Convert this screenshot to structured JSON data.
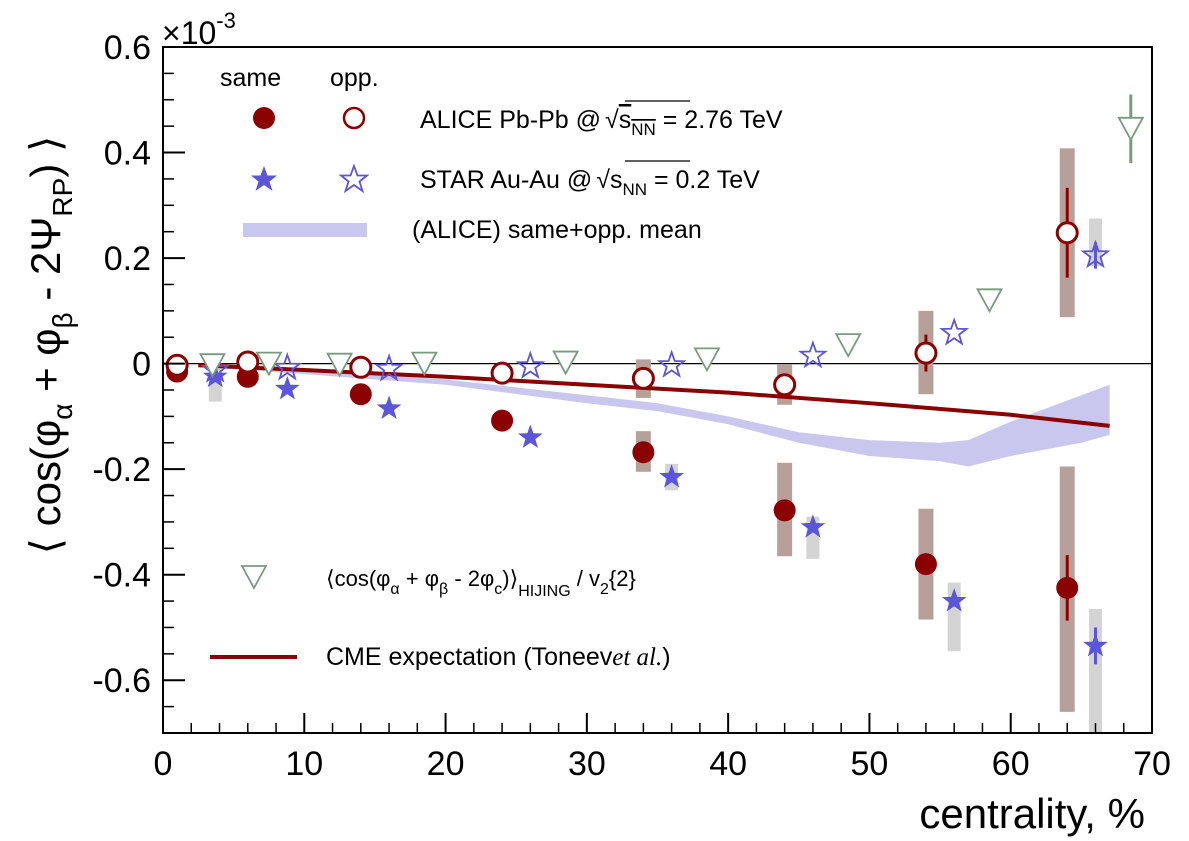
{
  "chart_data": {
    "type": "scatter",
    "xlabel": "centrality, %",
    "ylabel_parts": {
      "open": "⟨ cos(φ",
      "alpha": "α",
      "plus": " + φ",
      "beta": "β",
      "minus": " - 2Ψ",
      "rp": "RP",
      "close": ") ⟩"
    },
    "y_multiplier": {
      "base": "×10",
      "exp": "-3"
    },
    "xlim": [
      0,
      70
    ],
    "ylim": [
      -0.7,
      0.6
    ],
    "x_ticks": [
      0,
      10,
      20,
      30,
      40,
      50,
      60,
      70
    ],
    "y_ticks": [
      -0.6,
      -0.4,
      -0.2,
      0,
      0.2,
      0.4,
      0.6
    ],
    "x_tick_labels": [
      "0",
      "10",
      "20",
      "30",
      "40",
      "50",
      "60",
      "70"
    ],
    "y_tick_labels": [
      "-0.6",
      "-0.4",
      "-0.2",
      "0",
      "0.2",
      "0.4",
      "0.6"
    ],
    "legend": {
      "col_same": "same",
      "col_opp": "opp.",
      "alice": {
        "text": "ALICE Pb-Pb @",
        "sqrt_s": "s",
        "sub": "NN",
        "tail": " = 2.76 TeV"
      },
      "star": {
        "text": "STAR Au-Au @",
        "sqrt_s": "s",
        "sub": "NN",
        "tail": " = 0.2 TeV"
      },
      "band": "(ALICE) same+opp. mean",
      "hijing": {
        "open": "⟨cos(φ",
        "alpha": "α",
        "plus": " + φ",
        "beta": "β",
        "minus": " - 2φ",
        "c": "c",
        "close": ")⟩",
        "hijing": "HIJING",
        "tail": " / v",
        "two": "2",
        "tail2": "{2}"
      },
      "cme": {
        "text": "CME expectation (Toneev",
        "italic": "et al.",
        "close": ")"
      }
    },
    "colors": {
      "alice": "#8b0000",
      "alice_sys": "#b8a09a",
      "star": "#5b55d9",
      "star_sys": "#d4d4d4",
      "band": "#c9c7ee",
      "hijing": "#7a9a80",
      "cme": "#8b0000"
    },
    "series": [
      {
        "name": "ALICE same",
        "marker": "filled-circle",
        "points": [
          {
            "x": 1,
            "y": -0.015
          },
          {
            "x": 6,
            "y": -0.025
          },
          {
            "x": 14,
            "y": -0.058
          },
          {
            "x": 24,
            "y": -0.108
          },
          {
            "x": 34,
            "y": -0.168,
            "err": 0.01,
            "sys": [
              -0.205,
              -0.128
            ]
          },
          {
            "x": 44,
            "y": -0.278,
            "err": 0.015,
            "sys": [
              -0.365,
              -0.188
            ]
          },
          {
            "x": 54,
            "y": -0.38,
            "err": 0.015,
            "sys": [
              -0.485,
              -0.275
            ]
          },
          {
            "x": 64,
            "y": -0.425,
            "err": 0.062,
            "sys": [
              -0.66,
              -0.195
            ]
          }
        ]
      },
      {
        "name": "ALICE opp.",
        "marker": "open-circle",
        "points": [
          {
            "x": 1,
            "y": -0.003
          },
          {
            "x": 6,
            "y": 0.003
          },
          {
            "x": 14,
            "y": -0.007
          },
          {
            "x": 24,
            "y": -0.018
          },
          {
            "x": 34,
            "y": -0.028,
            "sys": [
              -0.065,
              0.008
            ]
          },
          {
            "x": 44,
            "y": -0.04,
            "sys": [
              -0.078,
              -0.002
            ]
          },
          {
            "x": 54,
            "y": 0.02,
            "err": 0.035,
            "sys": [
              -0.058,
              0.1
            ]
          },
          {
            "x": 64,
            "y": 0.248,
            "err": 0.085,
            "sys": [
              0.088,
              0.408
            ]
          }
        ]
      },
      {
        "name": "STAR same",
        "marker": "filled-star",
        "points": [
          {
            "x": 3.7,
            "y": -0.025,
            "sys": [
              -0.072,
              0.0
            ]
          },
          {
            "x": 8.8,
            "y": -0.048
          },
          {
            "x": 16,
            "y": -0.085
          },
          {
            "x": 26,
            "y": -0.14
          },
          {
            "x": 36,
            "y": -0.215,
            "sys": [
              -0.24,
              -0.19
            ]
          },
          {
            "x": 46,
            "y": -0.31,
            "sys": [
              -0.37,
              -0.29
            ]
          },
          {
            "x": 56,
            "y": -0.45,
            "sys": [
              -0.545,
              -0.415
            ]
          },
          {
            "x": 66,
            "y": -0.535,
            "err": 0.035,
            "sys": [
              -0.7,
              -0.465
            ]
          }
        ]
      },
      {
        "name": "STAR opp.",
        "marker": "open-star",
        "points": [
          {
            "x": 3.7,
            "y": -0.012
          },
          {
            "x": 8.8,
            "y": -0.008
          },
          {
            "x": 16,
            "y": -0.01
          },
          {
            "x": 26,
            "y": -0.005
          },
          {
            "x": 36,
            "y": -0.003
          },
          {
            "x": 46,
            "y": 0.015
          },
          {
            "x": 56,
            "y": 0.058
          },
          {
            "x": 66,
            "y": 0.205,
            "err": 0.025,
            "sys": [
              0.185,
              0.275
            ]
          }
        ]
      },
      {
        "name": "HIJING",
        "marker": "open-triangle-down",
        "points": [
          {
            "x": 3.5,
            "y": -0.003
          },
          {
            "x": 7.5,
            "y": 0.0
          },
          {
            "x": 12.5,
            "y": -0.002
          },
          {
            "x": 18.5,
            "y": 0.0
          },
          {
            "x": 28.5,
            "y": 0.002
          },
          {
            "x": 38.5,
            "y": 0.008
          },
          {
            "x": 48.5,
            "y": 0.035
          },
          {
            "x": 58.5,
            "y": 0.12
          },
          {
            "x": 68.5,
            "y": 0.445,
            "err": 0.065
          }
        ]
      }
    ],
    "band": {
      "x": [
        2.5,
        10,
        20,
        30,
        35,
        40,
        45,
        50,
        55,
        57,
        60,
        65,
        67
      ],
      "upper": [
        0.0,
        -0.01,
        -0.03,
        -0.06,
        -0.075,
        -0.1,
        -0.13,
        -0.145,
        -0.15,
        -0.145,
        -0.11,
        -0.06,
        -0.04
      ],
      "lower": [
        -0.006,
        -0.02,
        -0.04,
        -0.075,
        -0.09,
        -0.115,
        -0.15,
        -0.175,
        -0.185,
        -0.195,
        -0.175,
        -0.15,
        -0.135
      ]
    },
    "cme_line": {
      "x": [
        2.5,
        10,
        20,
        30,
        40,
        50,
        60,
        67
      ],
      "y": [
        -0.003,
        -0.012,
        -0.025,
        -0.04,
        -0.055,
        -0.075,
        -0.097,
        -0.118
      ]
    }
  }
}
